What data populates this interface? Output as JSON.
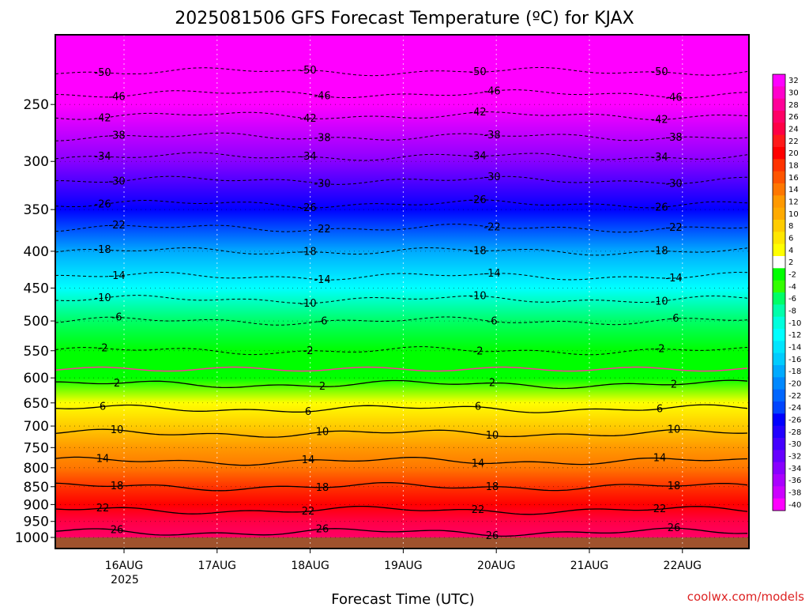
{
  "chart_data": {
    "type": "heatmap",
    "title": "2025081506 GFS Forecast Temperature (ºC) for KJAX",
    "xlabel": "Forecast Time (UTC)",
    "ylabel": "",
    "credit": "coolwx.com/models",
    "x_ticks": [
      "16AUG",
      "17AUG",
      "18AUG",
      "19AUG",
      "20AUG",
      "21AUG",
      "22AUG"
    ],
    "x_year": "2025",
    "x_range": [
      "15AUG 06Z",
      "22AUG 18Z"
    ],
    "y_log_pressure": true,
    "y_ticks": [
      250,
      300,
      350,
      400,
      450,
      500,
      550,
      600,
      650,
      700,
      750,
      800,
      850,
      900,
      950,
      1000
    ],
    "y_range_hpa": [
      1000,
      200
    ],
    "grid": true,
    "profile": [
      {
        "p": 200,
        "t": -56
      },
      {
        "p": 250,
        "t": -44
      },
      {
        "p": 300,
        "t": -33
      },
      {
        "p": 350,
        "t": -25
      },
      {
        "p": 400,
        "t": -18
      },
      {
        "p": 450,
        "t": -12
      },
      {
        "p": 500,
        "t": -6
      },
      {
        "p": 550,
        "t": -2
      },
      {
        "p": 600,
        "t": 1
      },
      {
        "p": 650,
        "t": 5
      },
      {
        "p": 700,
        "t": 9
      },
      {
        "p": 750,
        "t": 12
      },
      {
        "p": 800,
        "t": 15
      },
      {
        "p": 850,
        "t": 18
      },
      {
        "p": 900,
        "t": 21
      },
      {
        "p": 950,
        "t": 24
      },
      {
        "p": 1000,
        "t": 27
      }
    ],
    "contour_labels": [
      "-50",
      "-46",
      "-42",
      "-38",
      "-34",
      "-30",
      "-26",
      "-22",
      "-18",
      "-14",
      "-10",
      "-6",
      "-2",
      "2",
      "6",
      "10",
      "14",
      "18",
      "22",
      "26"
    ],
    "colorbar": {
      "labels": [
        "32",
        "30",
        "28",
        "26",
        "24",
        "22",
        "20",
        "18",
        "16",
        "14",
        "12",
        "10",
        "8",
        "6",
        "4",
        "2",
        "-2",
        "-4",
        "-6",
        "-8",
        "-10",
        "-12",
        "-14",
        "-16",
        "-18",
        "-20",
        "-22",
        "-24",
        "-26",
        "-28",
        "-30",
        "-32",
        "-34",
        "-36",
        "-38",
        "-40"
      ],
      "colors": [
        "#ff00ff",
        "#ff00cc",
        "#ff0099",
        "#ff0066",
        "#ff0044",
        "#ff1a1a",
        "#ff0000",
        "#ff3300",
        "#ff5500",
        "#ff7700",
        "#ff9900",
        "#ffaa00",
        "#ffcc00",
        "#ffe600",
        "#ffff00",
        "#ffffff",
        "#00ff00",
        "#33ff00",
        "#00ff66",
        "#00ffaa",
        "#00ffdd",
        "#00ffff",
        "#00e5ff",
        "#00ccff",
        "#00aaff",
        "#0088ff",
        "#0066ff",
        "#0044ff",
        "#0000ff",
        "#2200ff",
        "#4400ff",
        "#6600ff",
        "#8800ff",
        "#aa00ff",
        "#cc00ff",
        "#ff00ff"
      ]
    }
  }
}
